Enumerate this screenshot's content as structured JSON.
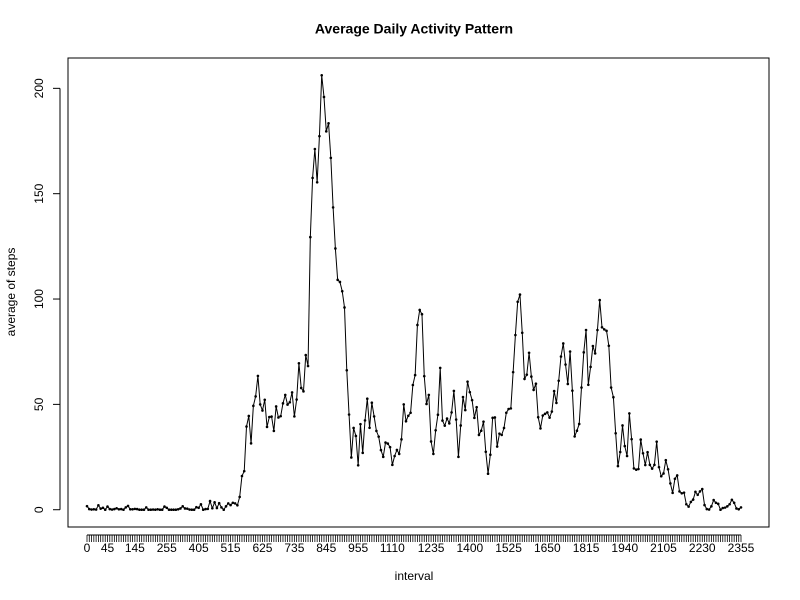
{
  "chart_data": {
    "type": "line",
    "title": "Average Daily Activity Pattern",
    "x_label": "interval",
    "y_label": "average of steps",
    "categories": [
      "0",
      null,
      null,
      null,
      null,
      null,
      null,
      null,
      null,
      "45",
      null,
      null,
      null,
      null,
      null,
      null,
      null,
      null,
      null,
      null,
      null,
      "145",
      null,
      null,
      null,
      null,
      null,
      null,
      null,
      null,
      null,
      null,
      null,
      null,
      null,
      "255",
      null,
      null,
      null,
      null,
      null,
      null,
      null,
      null,
      null,
      null,
      null,
      null,
      null,
      "405",
      null,
      null,
      null,
      null,
      null,
      null,
      null,
      null,
      null,
      null,
      null,
      null,
      null,
      "515",
      null,
      null,
      null,
      null,
      null,
      null,
      null,
      null,
      null,
      null,
      null,
      null,
      null,
      "625",
      null,
      null,
      null,
      null,
      null,
      null,
      null,
      null,
      null,
      null,
      null,
      null,
      null,
      "735",
      null,
      null,
      null,
      null,
      null,
      null,
      null,
      null,
      null,
      null,
      null,
      null,
      null,
      "845",
      null,
      null,
      null,
      null,
      null,
      null,
      null,
      null,
      null,
      null,
      null,
      null,
      null,
      "955",
      null,
      null,
      null,
      null,
      null,
      null,
      null,
      null,
      null,
      null,
      null,
      null,
      null,
      null,
      "1110",
      null,
      null,
      null,
      null,
      null,
      null,
      null,
      null,
      null,
      null,
      null,
      null,
      null,
      null,
      null,
      null,
      "1235",
      null,
      null,
      null,
      null,
      null,
      null,
      null,
      null,
      null,
      null,
      null,
      null,
      null,
      null,
      null,
      null,
      "1400",
      null,
      null,
      null,
      null,
      null,
      null,
      null,
      null,
      null,
      null,
      null,
      null,
      null,
      null,
      null,
      null,
      "1525",
      null,
      null,
      null,
      null,
      null,
      null,
      null,
      null,
      null,
      null,
      null,
      null,
      null,
      null,
      null,
      null,
      "1650",
      null,
      null,
      null,
      null,
      null,
      null,
      null,
      null,
      null,
      null,
      null,
      null,
      null,
      null,
      null,
      null,
      "1815",
      null,
      null,
      null,
      null,
      null,
      null,
      null,
      null,
      null,
      null,
      null,
      null,
      null,
      null,
      null,
      null,
      "1940",
      null,
      null,
      null,
      null,
      null,
      null,
      null,
      null,
      null,
      null,
      null,
      null,
      null,
      null,
      null,
      null,
      "2105",
      null,
      null,
      null,
      null,
      null,
      null,
      null,
      null,
      null,
      null,
      null,
      null,
      null,
      null,
      null,
      null,
      "2230",
      null,
      null,
      null,
      null,
      null,
      null,
      null,
      null,
      null,
      null,
      null,
      null,
      null,
      null,
      null,
      null,
      "2355"
    ],
    "values": [
      1.7,
      0.3,
      0.1,
      0.2,
      0.1,
      2.1,
      0.5,
      0.9,
      0,
      1.5,
      0.3,
      0.1,
      0.3,
      0.7,
      0.2,
      0.3,
      0,
      1.1,
      1.8,
      0.2,
      0.2,
      0.4,
      0.3,
      0,
      0,
      0,
      1.1,
      0,
      0,
      0.1,
      0,
      0.2,
      0,
      0,
      1.5,
      0.9,
      0,
      0,
      0,
      0,
      0.2,
      0.6,
      1.6,
      0.6,
      0.5,
      0.1,
      0,
      0,
      1.2,
      0.9,
      2.6,
      0,
      0.3,
      0.4,
      4.1,
      0.7,
      3.5,
      0.8,
      3.1,
      1.1,
      0,
      1.6,
      3,
      2.2,
      3.3,
      3,
      2.1,
      6.1,
      16,
      18.3,
      39.5,
      44.5,
      31.5,
      49.3,
      53.8,
      63.5,
      50,
      47.1,
      52.2,
      39.3,
      44,
      44.2,
      37.4,
      49,
      43.8,
      44.4,
      50.5,
      54.5,
      49.9,
      51,
      55.7,
      44.3,
      52.3,
      69.5,
      57.8,
      56.2,
      73.4,
      68.2,
      129.4,
      157.5,
      171.2,
      155.4,
      177.3,
      206.2,
      195.9,
      179.6,
      183.4,
      167,
      143.5,
      124,
      109.1,
      108.1,
      103.7,
      96,
      66.2,
      45.2,
      24.8,
      38.8,
      35,
      21.1,
      40.6,
      27,
      42.4,
      52.7,
      38.9,
      50.8,
      44.3,
      37.4,
      34.7,
      28.3,
      25.1,
      31.9,
      31.4,
      29.7,
      21.3,
      25.5,
      28.4,
      26.5,
      33.4,
      50,
      42,
      44.6,
      46,
      59.2,
      63.9,
      87.7,
      94.8,
      92.8,
      63.4,
      50.2,
      54.5,
      32.4,
      26.5,
      37.7,
      45.1,
      67.3,
      42.3,
      39.9,
      43.3,
      41,
      46.2,
      56.4,
      42.8,
      25.1,
      40,
      53.5,
      47.3,
      60.8,
      55.8,
      52,
      43.6,
      48.7,
      35.5,
      37.5,
      41.8,
      27.5,
      17.1,
      26.1,
      43.6,
      43.8,
      30,
      36.1,
      35.5,
      38.8,
      46,
      47.8,
      48.1,
      65.3,
      82.9,
      98.7,
      102.1,
      84,
      62.1,
      64.1,
      74.5,
      63.2,
      56.9,
      59.8,
      43.9,
      38.6,
      44.7,
      45.5,
      46.2,
      43.7,
      46.6,
      56.3,
      50.7,
      61.2,
      72.7,
      78.9,
      68.9,
      59.7,
      75.1,
      56.5,
      34.8,
      37.5,
      40.7,
      58,
      74.7,
      85.3,
      59.3,
      67.8,
      77.7,
      74.2,
      85.3,
      99.5,
      86.6,
      85.6,
      84.9,
      77.8,
      58,
      53.4,
      36.3,
      20.7,
      27.4,
      40,
      30.2,
      25.5,
      45.7,
      33.5,
      19.6,
      19,
      19.3,
      33.3,
      26.8,
      21.2,
      27.3,
      21.3,
      19.5,
      21.3,
      32.3,
      20.2,
      15.9,
      17.2,
      23.5,
      19.2,
      12.5,
      8,
      14.7,
      16.3,
      8.7,
      7.8,
      8.1,
      2.6,
      1.5,
      3.7,
      4.8,
      8.5,
      7.1,
      8.7,
      9.8,
      2.2,
      0.3,
      0.1,
      1.6,
      4.6,
      3.3,
      2.8,
      0,
      0.8,
      1,
      1.6,
      2.6,
      4.7,
      3.3,
      0.6,
      0.2,
      1.1
    ],
    "color": "#000000",
    "ylim": [
      -8.2,
      214.4
    ],
    "yticks": [
      0,
      50,
      100,
      150,
      200
    ]
  }
}
